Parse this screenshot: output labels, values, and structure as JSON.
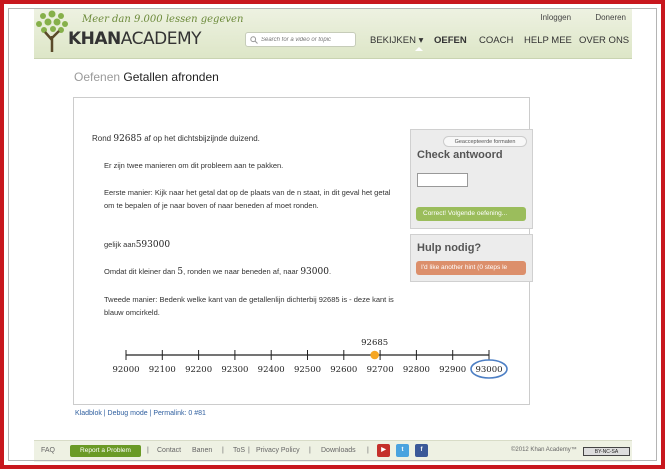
{
  "header": {
    "tagline": "Meer dan 9.000 lessen gegeven",
    "logo_khan": "KHAN",
    "logo_academy": "ACADEMY",
    "login": "Inloggen",
    "donate": "Doneren",
    "search_placeholder": "Search for a video or topic",
    "nav": [
      {
        "label": "BEKIJKEN ▾"
      },
      {
        "label": "OEFEN"
      },
      {
        "label": "COACH"
      },
      {
        "label": "HELP MEE"
      },
      {
        "label": "OVER ONS"
      }
    ]
  },
  "breadcrumb": {
    "section": "Oefenen",
    "title": "Getallen afronden"
  },
  "problem": {
    "prefix": "Rond",
    "number": "92685",
    "suffix": "af op het dichtsbijzijnde duizend."
  },
  "hints": {
    "intro": "Er zijn twee manieren om dit probleem aan te pakken.",
    "first": "Eerste manier: Kijk naar het getal dat op de plaats van de n staat, in dit geval het getal  om te bepalen of je naar boven of naar beneden af moet ronden.",
    "equal_label": "gelijk aan",
    "equal_value": "593000",
    "less_prefix": "Omdat dit kleiner dan",
    "less_num": "5",
    "less_mid": ", ronden we naar beneden af, naar",
    "less_value": "93000",
    "second": "Tweede manier: Bedenk welke kant van de getallenlijn dichterbij 92685 is - deze kant is blauw omcirkeld."
  },
  "chart_data": {
    "type": "scatter",
    "title": "",
    "xlabel": "",
    "ylabel": "",
    "categories": [
      "92000",
      "92100",
      "92200",
      "92300",
      "92400",
      "92500",
      "92600",
      "92700",
      "92800",
      "92900",
      "93000"
    ],
    "point": {
      "x": 92685,
      "label": "92685",
      "color": "#f5a623"
    },
    "circled_tick": "93000",
    "circle_color": "#4d7fc4"
  },
  "sidebar": {
    "formats_button": "Geaccepteerde formaten",
    "check_heading": "Check antwoord",
    "answer_value": "",
    "check_button": "Correct! Volgende oefening...",
    "help_heading": "Hulp nodig?",
    "hint_button": "I'd like another hint (0 steps le"
  },
  "sublinks": "Kladblok | Debug mode | Permalink: 0 #81",
  "footer": {
    "faq": "FAQ",
    "report": "Report a Problem",
    "links": [
      "Contact",
      "Banen",
      "ToS",
      "Privacy Policy",
      "Downloads"
    ],
    "copyright": "©2012 Khan Academy™",
    "license": "BY-NC-SA"
  },
  "colors": {
    "brand_green": "#6a9a25",
    "hint_orange": "#dc8f6b",
    "check_green": "#9bbd5c"
  }
}
